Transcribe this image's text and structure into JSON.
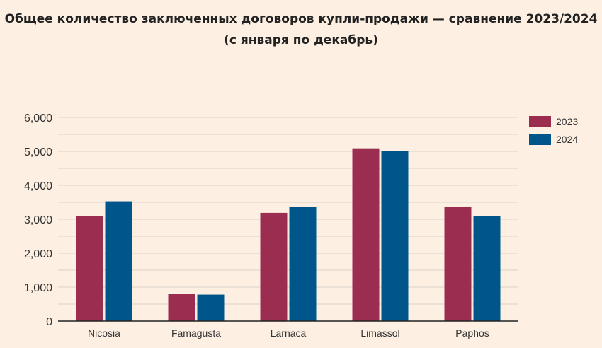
{
  "chart_data": {
    "type": "bar",
    "title": "Общее количество заключенных договоров купли-продажи — сравнение 2023/2024",
    "subtitle": "(с января по декабрь)",
    "categories": [
      "Nicosia",
      "Famagusta",
      "Larnaca",
      "Limassol",
      "Paphos"
    ],
    "series": [
      {
        "name": "2023",
        "color": "#9b2d50",
        "values": [
          3090,
          800,
          3190,
          5090,
          3360
        ]
      },
      {
        "name": "2024",
        "color": "#00558a",
        "values": [
          3530,
          780,
          3360,
          5020,
          3090
        ]
      }
    ],
    "ylim": [
      0,
      6000
    ],
    "yticks": [
      0,
      1000,
      2000,
      3000,
      4000,
      5000,
      6000
    ],
    "ytick_labels": [
      "0",
      "1,000",
      "2,000",
      "3,000",
      "4,000",
      "5,000",
      "6,000"
    ],
    "xlabel": "",
    "ylabel": "",
    "grid": true,
    "legend": "top-right"
  }
}
